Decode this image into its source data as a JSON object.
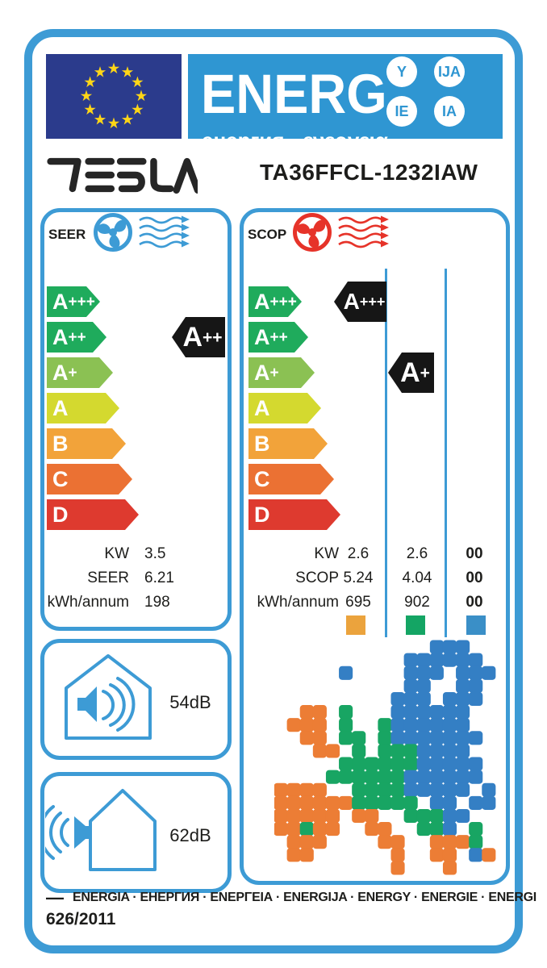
{
  "colors": {
    "accent_blue": "#3d9bd5",
    "band_blue": "#2f96d2",
    "eu_navy": "#2b3b8c",
    "star_yellow": "#ffd617",
    "marker_black": "#161616",
    "cooling_accent": "#3d9bd5",
    "heating_accent": "#e63329"
  },
  "header": {
    "title": "ENERG",
    "subtitle": "енергия · ενεργεια",
    "badges": [
      "Y",
      "IJA",
      "IE",
      "IA"
    ]
  },
  "brand": {
    "name": "TESLA",
    "model": "TA36FFCL-1232IAW"
  },
  "rating_scale": [
    {
      "label": "A+++",
      "color": "#1fab5c"
    },
    {
      "label": "A++",
      "color": "#1fab5c"
    },
    {
      "label": "A+",
      "color": "#8bc153"
    },
    {
      "label": "A",
      "color": "#d4d92f"
    },
    {
      "label": "B",
      "color": "#f2a33a"
    },
    {
      "label": "C",
      "color": "#eb7133"
    },
    {
      "label": "D",
      "color": "#de3a2f"
    }
  ],
  "cooling": {
    "label": "SEER",
    "rating": "A++",
    "table": [
      {
        "label": "KW",
        "value": "3.5"
      },
      {
        "label": "SEER",
        "value": "6.21"
      },
      {
        "label": "kWh/annum",
        "value": "198"
      }
    ]
  },
  "heating": {
    "label": "SCOP",
    "zone_ratings": [
      "A+++",
      "A+"
    ],
    "table": [
      {
        "label": "KW",
        "values": [
          "2.6",
          "2.6",
          "00"
        ]
      },
      {
        "label": "SCOP",
        "values": [
          "5.24",
          "4.04",
          "00"
        ]
      },
      {
        "label": "kWh/annum",
        "values": [
          "695",
          "902",
          "00"
        ]
      }
    ],
    "zone_colors": [
      "#eba33d",
      "#14a564",
      "#3a8fc7"
    ]
  },
  "noise": [
    {
      "value": "54dB"
    },
    {
      "value": "62dB"
    }
  ],
  "climate_map": {
    "colors": {
      "o": "#ec7d35",
      "g": "#18a563",
      "b": "#347fc4"
    },
    "grid": [
      "............bbb...",
      "..........bbbbbb..",
      ".....b....bbb.bbb.",
      "..........bb..bb..",
      ".........bbb.bbb..",
      "..oo.g...bbbbbb...",
      ".ooo.g..gbbbbbb...",
      "..oo.gg.gbbbbbbb..",
      "...oo.g.gggbbbb...",
      ".....ggggggbbbbb..",
      "....ggggggbbbbbb..",
      "oooo..ggggbbbbb.b.",
      "ooooooggggg.bb.bb.",
      "ooooo.oo..gggbb...",
      "oogoo..oo..ggb.g..",
      ".ooo....oo..ooog..",
      ".oo......o..oo.bo.",
      ".........o...o...."
    ]
  },
  "footer": {
    "languages": "ENERGIA · ЕНЕРГИЯ · ΕΝΕΡΓΕΙΑ · ENERGIJA · ENERGY · ENERGIE · ENERGI",
    "regulation": "626/2011"
  }
}
